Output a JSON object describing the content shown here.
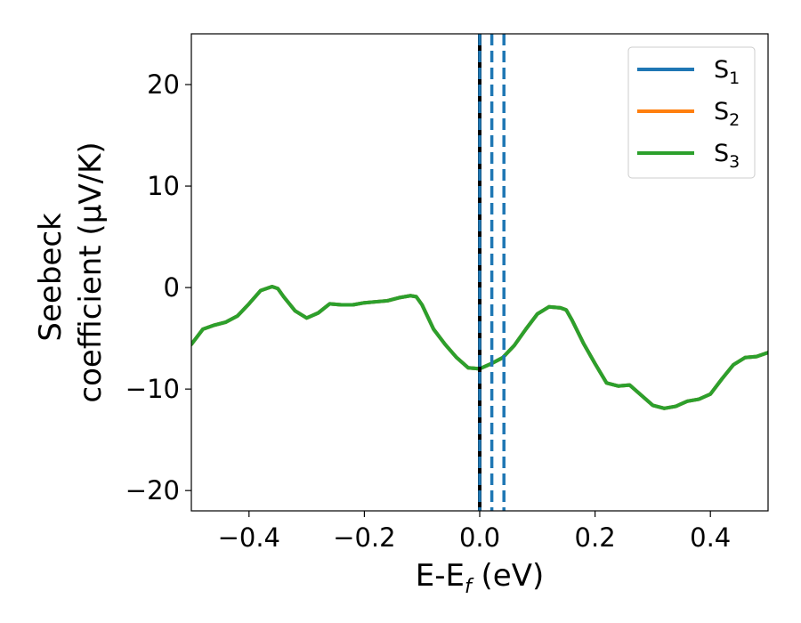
{
  "chart_data": {
    "type": "line",
    "xlabel": "E-E",
    "xlabel_subscript": "f",
    "xlabel_unit": "(eV)",
    "ylabel_line1": "Seebeck",
    "ylabel_line2": "coefficient  (μV/K)",
    "xlim": [
      -0.5,
      0.5
    ],
    "ylim": [
      -22,
      25
    ],
    "xticks": [
      -0.4,
      -0.2,
      0.0,
      0.2,
      0.4
    ],
    "xtick_labels": [
      "−0.4",
      "−0.2",
      "0.0",
      "0.2",
      "0.4"
    ],
    "yticks": [
      20,
      10,
      0,
      -10,
      -20
    ],
    "ytick_labels": [
      "20",
      "10",
      "0",
      "−10",
      "−20"
    ],
    "grid": false,
    "legend_position": "top-right",
    "series": [
      {
        "name": "S",
        "subscript": "1",
        "color": "#1f77b4",
        "x": [
          -0.5,
          -0.48,
          -0.46,
          -0.44,
          -0.42,
          -0.4,
          -0.38,
          -0.36,
          -0.35,
          -0.34,
          -0.32,
          -0.3,
          -0.28,
          -0.26,
          -0.24,
          -0.22,
          -0.2,
          -0.18,
          -0.16,
          -0.14,
          -0.12,
          -0.11,
          -0.1,
          -0.08,
          -0.06,
          -0.04,
          -0.02,
          0.0,
          0.02,
          0.04,
          0.06,
          0.08,
          0.1,
          0.12,
          0.14,
          0.15,
          0.16,
          0.18,
          0.2,
          0.22,
          0.24,
          0.26,
          0.28,
          0.3,
          0.32,
          0.34,
          0.36,
          0.38,
          0.4,
          0.42,
          0.44,
          0.46,
          0.48,
          0.5
        ],
        "y": [
          -5.6,
          -4.1,
          -3.7,
          -3.4,
          -2.8,
          -1.6,
          -0.3,
          0.1,
          -0.1,
          -0.9,
          -2.3,
          -3.0,
          -2.5,
          -1.6,
          -1.7,
          -1.7,
          -1.5,
          -1.4,
          -1.3,
          -1.0,
          -0.8,
          -0.9,
          -1.7,
          -4.1,
          -5.6,
          -6.9,
          -7.9,
          -8.0,
          -7.5,
          -6.9,
          -5.7,
          -4.1,
          -2.6,
          -1.9,
          -2.0,
          -2.2,
          -3.2,
          -5.5,
          -7.5,
          -9.4,
          -9.7,
          -9.6,
          -10.6,
          -11.6,
          -11.9,
          -11.7,
          -11.2,
          -11.0,
          -10.5,
          -9.0,
          -7.6,
          -6.9,
          -6.8,
          -6.4
        ]
      },
      {
        "name": "S",
        "subscript": "2",
        "color": "#ff7f0e",
        "x": [
          -0.5,
          -0.48,
          -0.46,
          -0.44,
          -0.42,
          -0.4,
          -0.38,
          -0.36,
          -0.35,
          -0.34,
          -0.32,
          -0.3,
          -0.28,
          -0.26,
          -0.24,
          -0.22,
          -0.2,
          -0.18,
          -0.16,
          -0.14,
          -0.12,
          -0.11,
          -0.1,
          -0.08,
          -0.06,
          -0.04,
          -0.02,
          0.0,
          0.02,
          0.04,
          0.06,
          0.08,
          0.1,
          0.12,
          0.14,
          0.15,
          0.16,
          0.18,
          0.2,
          0.22,
          0.24,
          0.26,
          0.28,
          0.3,
          0.32,
          0.34,
          0.36,
          0.38,
          0.4,
          0.42,
          0.44,
          0.46,
          0.48,
          0.5
        ],
        "y": [
          -5.6,
          -4.1,
          -3.7,
          -3.4,
          -2.8,
          -1.6,
          -0.3,
          0.1,
          -0.1,
          -0.9,
          -2.3,
          -3.0,
          -2.5,
          -1.6,
          -1.7,
          -1.7,
          -1.5,
          -1.4,
          -1.3,
          -1.0,
          -0.8,
          -0.9,
          -1.7,
          -4.1,
          -5.6,
          -6.9,
          -7.9,
          -8.0,
          -7.5,
          -6.9,
          -5.7,
          -4.1,
          -2.6,
          -1.9,
          -2.0,
          -2.2,
          -3.2,
          -5.5,
          -7.5,
          -9.4,
          -9.7,
          -9.6,
          -10.6,
          -11.6,
          -11.9,
          -11.7,
          -11.2,
          -11.0,
          -10.5,
          -9.0,
          -7.6,
          -6.9,
          -6.8,
          -6.4
        ]
      },
      {
        "name": "S",
        "subscript": "3",
        "color": "#2ca02c",
        "x": [
          -0.5,
          -0.48,
          -0.46,
          -0.44,
          -0.42,
          -0.4,
          -0.38,
          -0.36,
          -0.35,
          -0.34,
          -0.32,
          -0.3,
          -0.28,
          -0.26,
          -0.24,
          -0.22,
          -0.2,
          -0.18,
          -0.16,
          -0.14,
          -0.12,
          -0.11,
          -0.1,
          -0.08,
          -0.06,
          -0.04,
          -0.02,
          0.0,
          0.02,
          0.04,
          0.06,
          0.08,
          0.1,
          0.12,
          0.14,
          0.15,
          0.16,
          0.18,
          0.2,
          0.22,
          0.24,
          0.26,
          0.28,
          0.3,
          0.32,
          0.34,
          0.36,
          0.38,
          0.4,
          0.42,
          0.44,
          0.46,
          0.48,
          0.5
        ],
        "y": [
          -5.6,
          -4.1,
          -3.7,
          -3.4,
          -2.8,
          -1.6,
          -0.3,
          0.1,
          -0.1,
          -0.9,
          -2.3,
          -3.0,
          -2.5,
          -1.6,
          -1.7,
          -1.7,
          -1.5,
          -1.4,
          -1.3,
          -1.0,
          -0.8,
          -0.9,
          -1.7,
          -4.1,
          -5.6,
          -6.9,
          -7.9,
          -8.0,
          -7.5,
          -6.9,
          -5.7,
          -4.1,
          -2.6,
          -1.9,
          -2.0,
          -2.2,
          -3.2,
          -5.5,
          -7.5,
          -9.4,
          -9.7,
          -9.6,
          -10.6,
          -11.6,
          -11.9,
          -11.7,
          -11.2,
          -11.0,
          -10.5,
          -9.0,
          -7.6,
          -6.9,
          -6.8,
          -6.4
        ]
      }
    ],
    "vlines": [
      {
        "x": 0.0,
        "color": "#000000",
        "style": "solid"
      },
      {
        "x": 0.0,
        "color": "#1f77b4",
        "style": "dashed"
      },
      {
        "x": 0.021,
        "color": "#1f77b4",
        "style": "dashed"
      },
      {
        "x": 0.042,
        "color": "#1f77b4",
        "style": "dashed"
      }
    ]
  }
}
